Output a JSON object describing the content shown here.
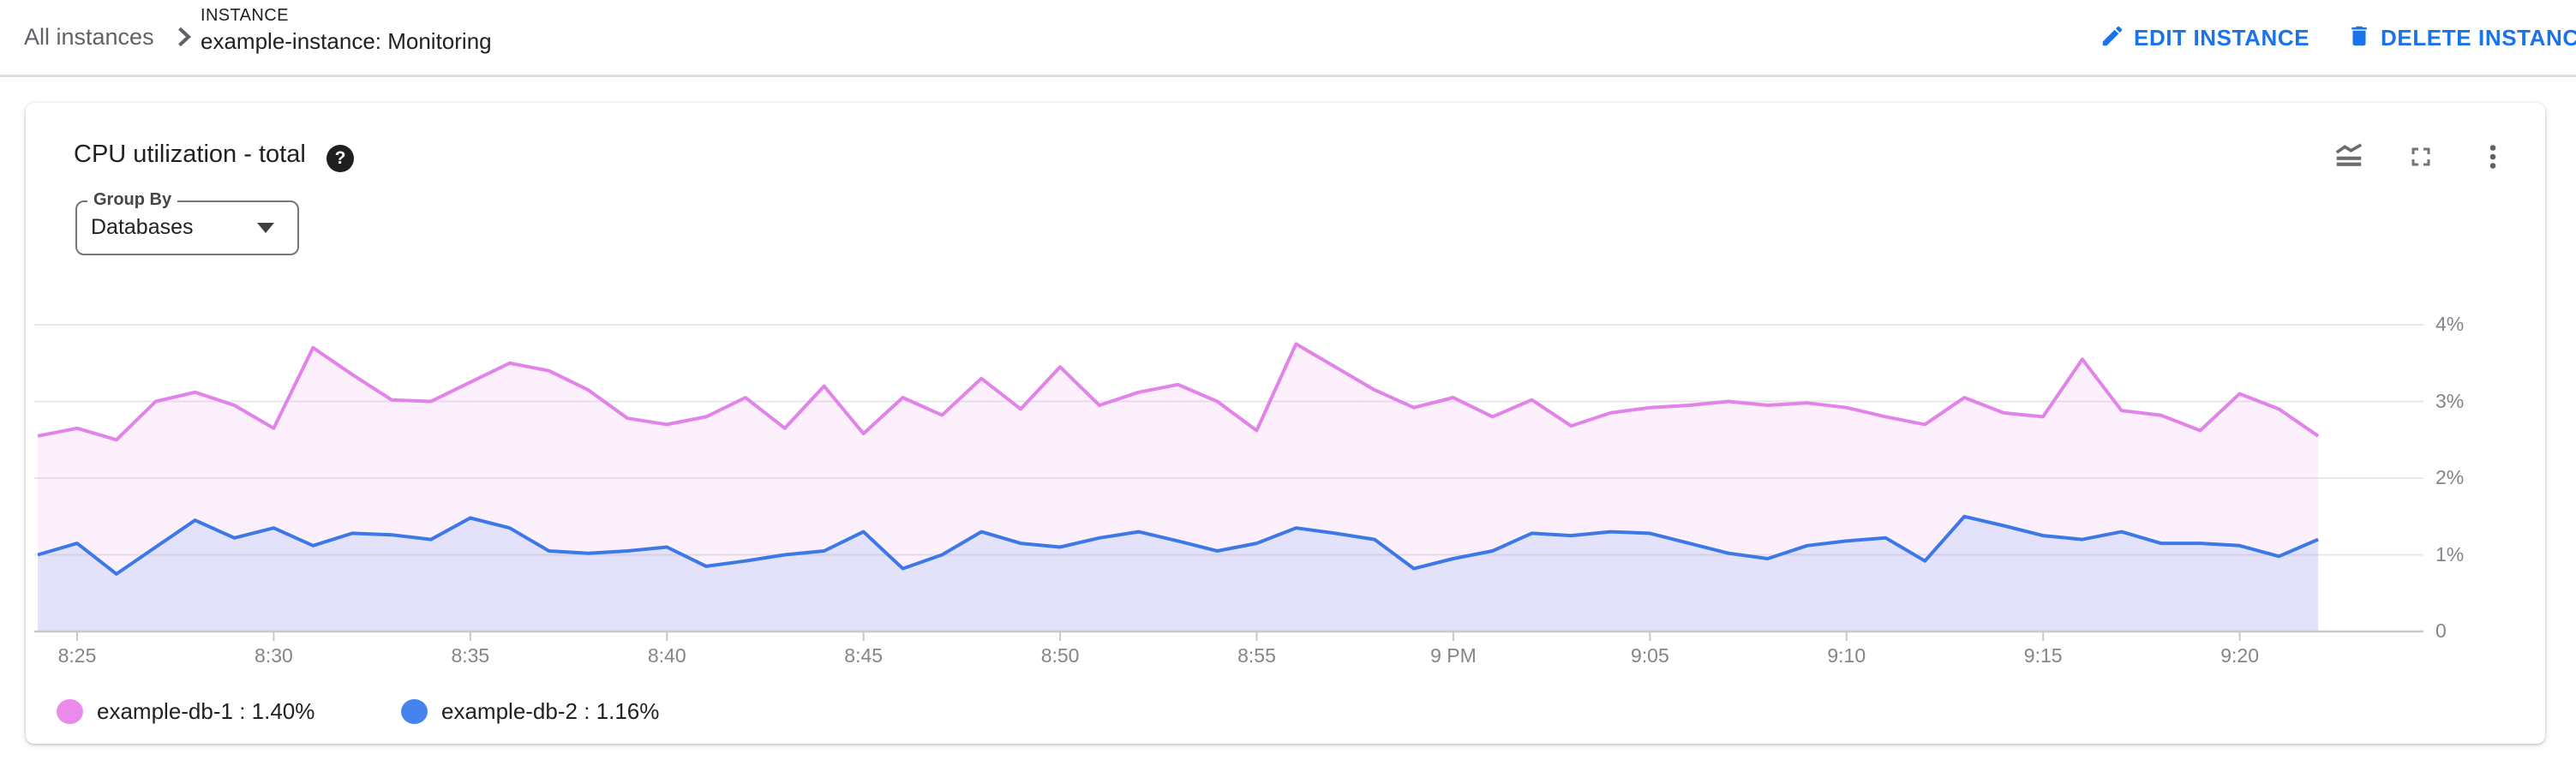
{
  "header": {
    "breadcrumb_label": "All instances",
    "chevron_icon": "chevron-right-icon",
    "section_label": "INSTANCE",
    "section_title": "example-instance: Monitoring",
    "edit_button": {
      "label": "EDIT INSTANCE",
      "icon": "pencil-icon"
    },
    "delete_button": {
      "label": "DELETE INSTANCE",
      "icon": "trash-icon"
    },
    "accent_color": "#1a73e8"
  },
  "card": {
    "title": "CPU utilization - total",
    "help_icon_glyph": "?",
    "toolbar": {
      "chart_type_icon": "area-chart-icon",
      "fullscreen_icon": "fullscreen-icon",
      "more_icon": "more-vert-icon"
    },
    "group_by": {
      "label": "Group By",
      "value": "Databases"
    }
  },
  "chart_data": {
    "type": "area",
    "title": "CPU utilization - total",
    "x": [
      "8:24",
      "8:25",
      "8:26",
      "8:27",
      "8:28",
      "8:29",
      "8:30",
      "8:31",
      "8:32",
      "8:33",
      "8:34",
      "8:35",
      "8:36",
      "8:37",
      "8:38",
      "8:39",
      "8:40",
      "8:41",
      "8:42",
      "8:43",
      "8:44",
      "8:45",
      "8:46",
      "8:47",
      "8:48",
      "8:49",
      "8:50",
      "8:51",
      "8:52",
      "8:53",
      "8:54",
      "8:55",
      "8:56",
      "8:57",
      "8:58",
      "8:59",
      "9:00",
      "9:01",
      "9:02",
      "9:03",
      "9:04",
      "9:05",
      "9:06",
      "9:07",
      "9:08",
      "9:09",
      "9:10",
      "9:11",
      "9:12",
      "9:13",
      "9:14",
      "9:15",
      "9:16",
      "9:17",
      "9:18",
      "9:19",
      "9:20",
      "9:21",
      "9:22"
    ],
    "x_tick_labels": [
      "8:25",
      "8:30",
      "8:35",
      "8:40",
      "8:45",
      "8:50",
      "8:55",
      "9 PM",
      "9:05",
      "9:10",
      "9:15",
      "9:20"
    ],
    "y_tick_labels": [
      "0",
      "1%",
      "2%",
      "3%",
      "4%"
    ],
    "ylabel": "",
    "xlabel": "",
    "y_unit": "percent",
    "ylim": [
      0,
      4.3
    ],
    "grid": "horizontal",
    "legend_position": "bottom-left",
    "grid_color": "#e9e7e7",
    "baseline_color": "#c9c9c9",
    "series": [
      {
        "name": "example-db-1",
        "legend_label": "example-db-1 : 1.40%",
        "current_value": "1.40%",
        "line_color": "#e183e8",
        "fill_color": "rgba(225,131,232,0.12)",
        "dot_color": "#ea8bec",
        "values": [
          2.55,
          2.65,
          2.5,
          3.0,
          3.12,
          2.95,
          2.65,
          3.7,
          3.35,
          3.02,
          3.0,
          3.25,
          3.5,
          3.4,
          3.15,
          2.78,
          2.7,
          2.8,
          3.05,
          2.65,
          3.2,
          2.58,
          3.05,
          2.82,
          3.3,
          2.9,
          3.45,
          2.95,
          3.12,
          3.22,
          3.0,
          2.62,
          3.75,
          3.45,
          3.15,
          2.92,
          3.05,
          2.8,
          3.02,
          2.68,
          2.85,
          2.92,
          2.95,
          3.0,
          2.95,
          2.98,
          2.92,
          2.8,
          2.7,
          3.05,
          2.85,
          2.8,
          3.55,
          2.88,
          2.82,
          2.62,
          3.1,
          2.9,
          2.55
        ]
      },
      {
        "name": "example-db-2",
        "legend_label": "example-db-2 : 1.16%",
        "current_value": "1.16%",
        "line_color": "#3c78e7",
        "fill_color": "rgba(66,133,244,0.12)",
        "dot_color": "#4683ee",
        "values": [
          1.0,
          1.15,
          0.75,
          1.1,
          1.45,
          1.22,
          1.35,
          1.12,
          1.28,
          1.26,
          1.2,
          1.48,
          1.35,
          1.05,
          1.02,
          1.05,
          1.1,
          0.85,
          0.92,
          1.0,
          1.05,
          1.3,
          0.82,
          1.0,
          1.3,
          1.15,
          1.1,
          1.22,
          1.3,
          1.18,
          1.05,
          1.15,
          1.35,
          1.28,
          1.2,
          0.82,
          0.95,
          1.05,
          1.28,
          1.25,
          1.3,
          1.28,
          1.15,
          1.02,
          0.95,
          1.12,
          1.18,
          1.22,
          0.92,
          1.5,
          1.38,
          1.25,
          1.2,
          1.3,
          1.15,
          1.15,
          1.12,
          0.98,
          1.2
        ]
      }
    ]
  }
}
